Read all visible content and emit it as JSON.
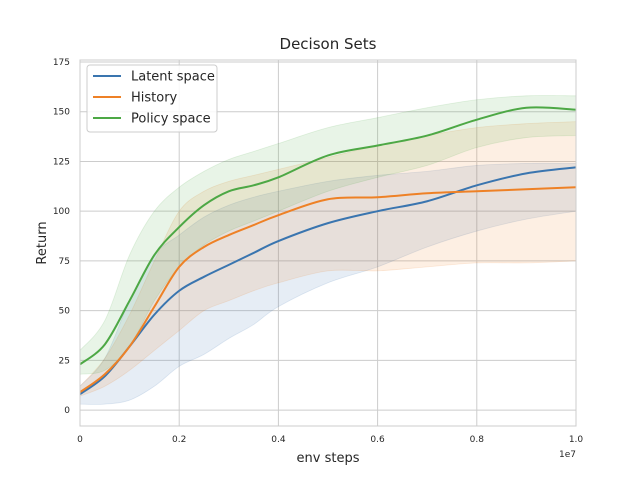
{
  "chart_data": {
    "type": "line",
    "title": "Decison Sets",
    "xlabel": "env steps",
    "ylabel": "Return",
    "x_offset_label": "1e7",
    "xlim": [
      0,
      1.0
    ],
    "ylim": [
      -8,
      176
    ],
    "xticks": [
      0.0,
      0.2,
      0.4,
      0.6,
      0.8,
      1.0
    ],
    "xtick_labels": [
      "0",
      "0.2",
      "0.4",
      "0.6",
      "0.8",
      "1.0"
    ],
    "yticks": [
      0,
      25,
      50,
      75,
      100,
      125,
      150,
      175
    ],
    "ytick_labels": [
      "0",
      "25",
      "50",
      "75",
      "100",
      "125",
      "150",
      "175"
    ],
    "grid": true,
    "legend_position": "top-left",
    "series": [
      {
        "name": "Latent space",
        "color": "#3a75af",
        "x": [
          0.0,
          0.05,
          0.1,
          0.15,
          0.2,
          0.25,
          0.3,
          0.35,
          0.4,
          0.5,
          0.6,
          0.7,
          0.8,
          0.9,
          1.0
        ],
        "y": [
          8,
          17,
          32,
          48,
          60,
          67,
          73,
          79,
          85,
          94,
          100,
          105,
          113,
          119,
          122
        ],
        "lower": [
          3,
          3,
          5,
          12,
          22,
          28,
          36,
          43,
          52,
          64,
          72,
          82,
          90,
          96,
          100
        ],
        "upper": [
          12,
          26,
          55,
          78,
          88,
          97,
          103,
          107,
          110,
          115,
          118,
          120,
          123,
          124,
          124
        ]
      },
      {
        "name": "History",
        "color": "#ee8126",
        "x": [
          0.0,
          0.05,
          0.1,
          0.15,
          0.2,
          0.25,
          0.3,
          0.35,
          0.4,
          0.5,
          0.6,
          0.7,
          0.8,
          0.9,
          1.0
        ],
        "y": [
          9,
          18,
          32,
          52,
          72,
          82,
          88,
          93,
          98,
          106,
          107,
          109,
          110,
          111,
          112
        ],
        "lower": [
          7,
          12,
          20,
          30,
          40,
          50,
          55,
          60,
          64,
          70,
          70,
          72,
          74,
          74,
          75
        ],
        "upper": [
          12,
          26,
          48,
          75,
          100,
          110,
          115,
          118,
          121,
          127,
          133,
          138,
          142,
          144,
          145
        ]
      },
      {
        "name": "Policy space",
        "color": "#4da845",
        "x": [
          0.0,
          0.05,
          0.1,
          0.15,
          0.2,
          0.25,
          0.3,
          0.35,
          0.4,
          0.5,
          0.6,
          0.7,
          0.8,
          0.9,
          1.0
        ],
        "y": [
          23,
          33,
          55,
          78,
          92,
          103,
          110,
          113,
          117,
          128,
          133,
          138,
          146,
          152,
          151
        ],
        "lower": [
          18,
          20,
          32,
          55,
          72,
          83,
          90,
          95,
          100,
          110,
          117,
          123,
          132,
          137,
          138
        ],
        "upper": [
          30,
          45,
          78,
          100,
          112,
          120,
          126,
          130,
          134,
          142,
          147,
          152,
          156,
          158,
          158
        ]
      }
    ]
  }
}
